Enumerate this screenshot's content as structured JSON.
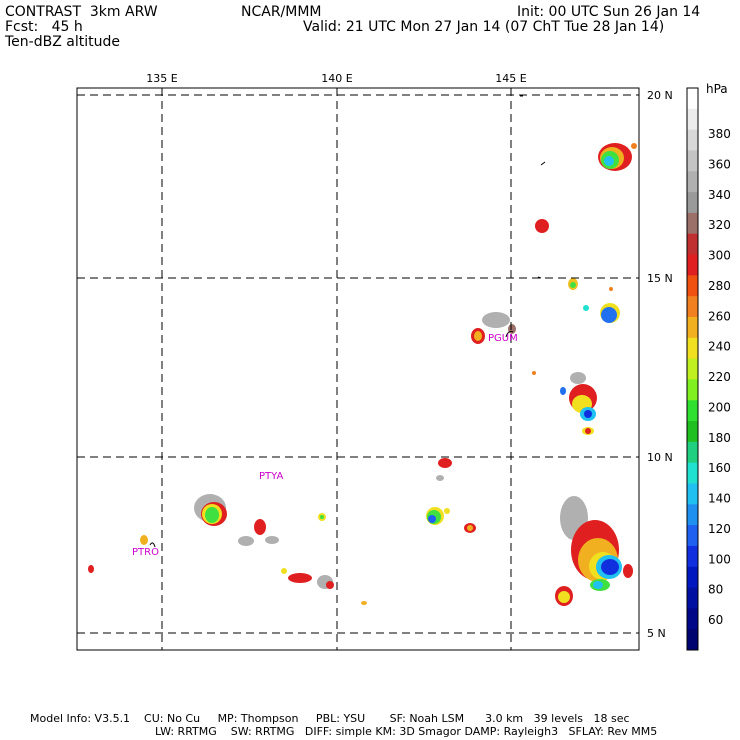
{
  "header": {
    "left_line1": "CONTRAST  3km ARW",
    "left_line2": "Fcst:   45 h",
    "left_line3": "Ten-dBZ altitude",
    "center": "NCAR/MMM",
    "right_line1": "Init: 00 UTC Sun 26 Jan 14",
    "right_line2": "Valid: 21 UTC Mon 27 Jan 14 (07 ChT Tue 28 Jan 14)"
  },
  "map": {
    "lon_labels": [
      "135 E",
      "140 E",
      "145 E"
    ],
    "lat_labels": [
      "20 N",
      "15 N",
      "10 N",
      "5 N"
    ],
    "stations": [
      "PGUM",
      "PTYA",
      "PTRO"
    ]
  },
  "colorbar": {
    "unit": "hPa",
    "labels": [
      "380",
      "360",
      "340",
      "320",
      "300",
      "280",
      "260",
      "240",
      "220",
      "200",
      "180",
      "160",
      "140",
      "120",
      "100",
      "80",
      "60"
    ],
    "colors": [
      "#ffffff",
      "#ececec",
      "#d8d8d8",
      "#c4c4c4",
      "#b0b0b0",
      "#9a9a9a",
      "#9a7068",
      "#c03030",
      "#e02020",
      "#f05010",
      "#f08020",
      "#f0b020",
      "#f0e020",
      "#c0f020",
      "#80f020",
      "#30e030",
      "#20c020",
      "#20d080",
      "#20e0d0",
      "#20c0f0",
      "#2090f0",
      "#2060f0",
      "#1030e0",
      "#0018c0",
      "#0010a0",
      "#000888",
      "#000470"
    ]
  },
  "footer": {
    "line1": "Model Info: V3.5.1    CU: No Cu     MP: Thompson     PBL: YSU       SF: Noah LSM      3.0 km   39 levels   18 sec",
    "line2": "LW: RRTMG    SW: RRTMG   DIFF: simple KM: 3D Smagor DAMP: Rayleigh3   SFLAY: Rev MM5"
  }
}
